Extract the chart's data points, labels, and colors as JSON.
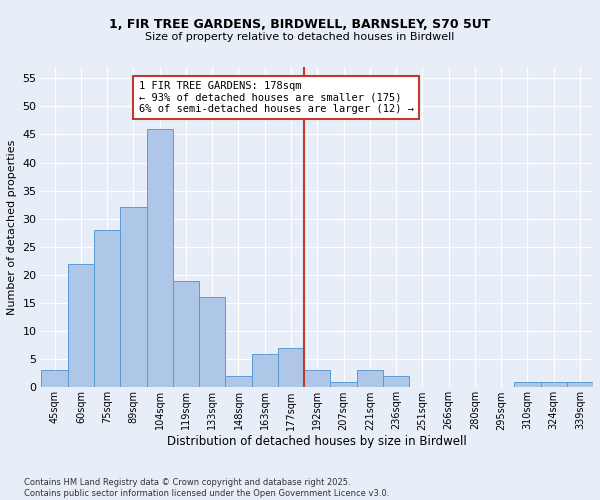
{
  "title1": "1, FIR TREE GARDENS, BIRDWELL, BARNSLEY, S70 5UT",
  "title2": "Size of property relative to detached houses in Birdwell",
  "xlabel": "Distribution of detached houses by size in Birdwell",
  "ylabel": "Number of detached properties",
  "categories": [
    "45sqm",
    "60sqm",
    "75sqm",
    "89sqm",
    "104sqm",
    "119sqm",
    "133sqm",
    "148sqm",
    "163sqm",
    "177sqm",
    "192sqm",
    "207sqm",
    "221sqm",
    "236sqm",
    "251sqm",
    "266sqm",
    "280sqm",
    "295sqm",
    "310sqm",
    "324sqm",
    "339sqm"
  ],
  "values": [
    3,
    22,
    28,
    32,
    46,
    19,
    16,
    2,
    6,
    7,
    3,
    1,
    3,
    2,
    0,
    0,
    0,
    0,
    1,
    1,
    1
  ],
  "bar_color": "#aec6e8",
  "bar_edge_color": "#5b9bd5",
  "vline_color": "#c0392b",
  "annotation_text": "1 FIR TREE GARDENS: 178sqm\n← 93% of detached houses are smaller (175)\n6% of semi-detached houses are larger (12) →",
  "annotation_box_color": "#ffffff",
  "annotation_box_edge": "#c0392b",
  "ylim": [
    0,
    57
  ],
  "yticks": [
    0,
    5,
    10,
    15,
    20,
    25,
    30,
    35,
    40,
    45,
    50,
    55
  ],
  "footer": "Contains HM Land Registry data © Crown copyright and database right 2025.\nContains public sector information licensed under the Open Government Licence v3.0.",
  "bg_color": "#e8eef8",
  "plot_bg_color": "#e8eef8"
}
